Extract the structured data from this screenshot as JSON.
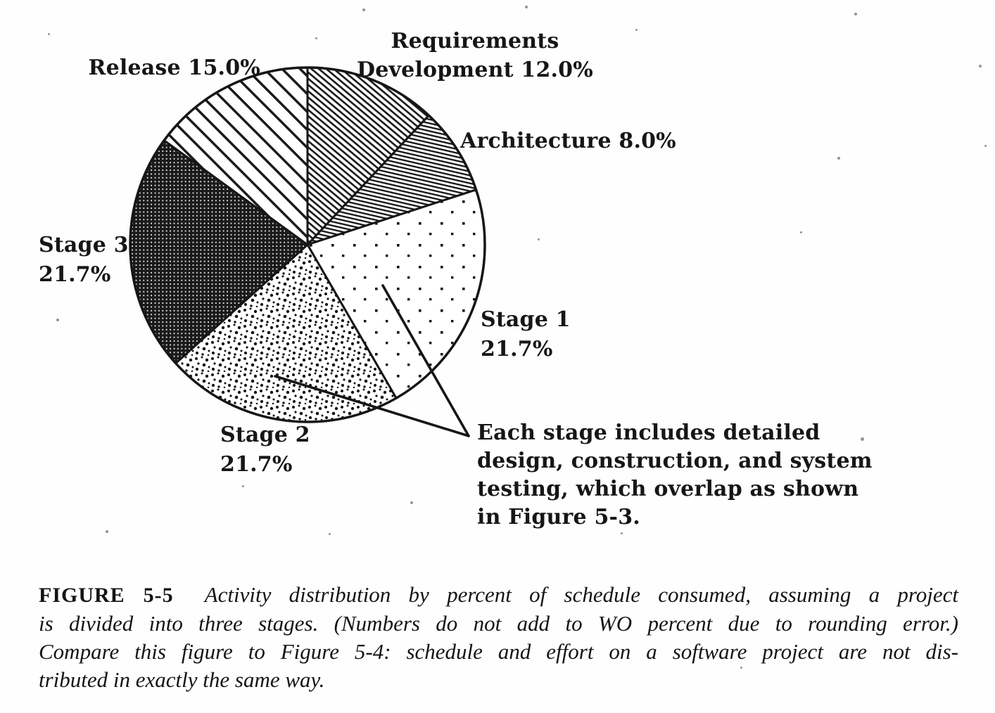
{
  "figure": {
    "labels": {
      "requirements": "Requirements\nDevelopment 12.0%",
      "architecture": "Architecture 8.0%",
      "stage1": "Stage 1\n21.7%",
      "stage2": "Stage 2\n21.7%",
      "stage3": "Stage 3\n21.7%",
      "release": "Release 15.0%"
    },
    "annotation": "Each stage includes detailed\ndesign, construction, and system\ntesting, which overlap as shown\nin Figure 5-3."
  },
  "caption": {
    "figure_label": "FIGURE 5-5",
    "lines": [
      "Activity distribution by percent of schedule consumed, assuming a project",
      "is divided into three stages. (Numbers do not add to WO percent due to rounding error.)",
      "Compare this figure to Figure 5-4: schedule and effort on a software project are not dis-",
      "tributed in exactly the same way."
    ]
  },
  "chart_data": {
    "type": "pie",
    "start_position": "12-o-clock",
    "direction": "clockwise",
    "ink_color": "#161616",
    "background": "#ffffff",
    "slices": [
      {
        "id": "requirements-development",
        "label": "Requirements Development",
        "value": 12.0,
        "value_text": "12.0%",
        "pattern": "fine-diagonal-hatch"
      },
      {
        "id": "architecture",
        "label": "Architecture",
        "value": 8.0,
        "value_text": "8.0%",
        "pattern": "fine-horizontal-hatch"
      },
      {
        "id": "stage-1",
        "label": "Stage 1",
        "value": 21.7,
        "value_text": "21.7%",
        "pattern": "sparse-dots"
      },
      {
        "id": "stage-2",
        "label": "Stage 2",
        "value": 21.7,
        "value_text": "21.7%",
        "pattern": "dense-stipple"
      },
      {
        "id": "stage-3",
        "label": "Stage 3",
        "value": 21.7,
        "value_text": "21.7%",
        "pattern": "dark-crosshatch"
      },
      {
        "id": "release",
        "label": "Release",
        "value": 15.0,
        "value_text": "15.0%",
        "pattern": "wide-diagonal-stripes"
      }
    ],
    "annotation": "Each stage includes detailed design, construction, and system testing, which overlap as shown in Figure 5-3.",
    "annotation_targets": [
      "Stage 1",
      "Stage 2"
    ]
  }
}
